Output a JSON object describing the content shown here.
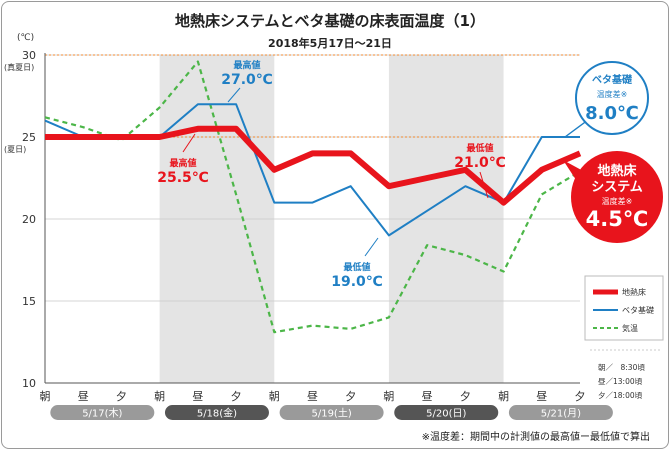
{
  "chart_data": {
    "type": "line",
    "title": "地熱床システムとベタ基礎の床表面温度（1）",
    "subtitle": "2018年5月17日〜21日",
    "y_unit": "(℃)",
    "ylim": [
      10,
      30
    ],
    "yticks": [
      10,
      15,
      20,
      25,
      30
    ],
    "reference_lines": [
      {
        "value": 30,
        "label": "(真夏日)"
      },
      {
        "value": 25,
        "label": "(夏日)"
      }
    ],
    "x": [
      "朝",
      "昼",
      "夕",
      "朝",
      "昼",
      "夕",
      "朝",
      "昼",
      "夕",
      "朝",
      "昼",
      "夕",
      "朝",
      "昼",
      "夕"
    ],
    "days": [
      "5/17(木)",
      "5/18(金)",
      "5/19(土)",
      "5/20(日)",
      "5/21(月)"
    ],
    "shaded_days": [
      1,
      3
    ],
    "series": [
      {
        "name": "地熱床",
        "color": "#e8141c",
        "style": "thick",
        "values": [
          25,
          25,
          25,
          25,
          25.5,
          25.5,
          23,
          24,
          24,
          22,
          22.5,
          23,
          21,
          23,
          24
        ]
      },
      {
        "name": "ベタ基礎",
        "color": "#1f7fc4",
        "style": "solid",
        "values": [
          26,
          25,
          25,
          25,
          27,
          27,
          21,
          21,
          22,
          19,
          20.5,
          22,
          21,
          25,
          25
        ]
      },
      {
        "name": "気温",
        "color": "#4cb648",
        "style": "dashed",
        "values": [
          26.2,
          25.6,
          24.8,
          26.8,
          29.6,
          21.5,
          13.1,
          13.5,
          13.3,
          14,
          18.4,
          17.8,
          16.8,
          21.5,
          22.9
        ]
      }
    ],
    "annotations": [
      {
        "id": "red_max",
        "label": "最高値",
        "value": "25.5℃",
        "color": "#e8141c"
      },
      {
        "id": "blue_max",
        "label": "最高値",
        "value": "27.0℃",
        "color": "#1f7fc4"
      },
      {
        "id": "blue_min",
        "label": "最低値",
        "value": "19.0℃",
        "color": "#1f7fc4"
      },
      {
        "id": "red_min",
        "label": "最低値",
        "value": "21.0℃",
        "color": "#e8141c"
      }
    ],
    "callouts": {
      "beta": {
        "line1": "ベタ基礎",
        "line2": "温度差※",
        "value": "8.0℃"
      },
      "chinetsu": {
        "line1": "地熱床",
        "line2": "システム",
        "line3": "温度差※",
        "value": "4.5℃"
      }
    },
    "time_legend": [
      "朝／　8:30頃",
      "昼／13:00頃",
      "夕／18:00頃"
    ],
    "footnote": "※温度差：期間中の計測値の最高値ー最低値で算出"
  }
}
